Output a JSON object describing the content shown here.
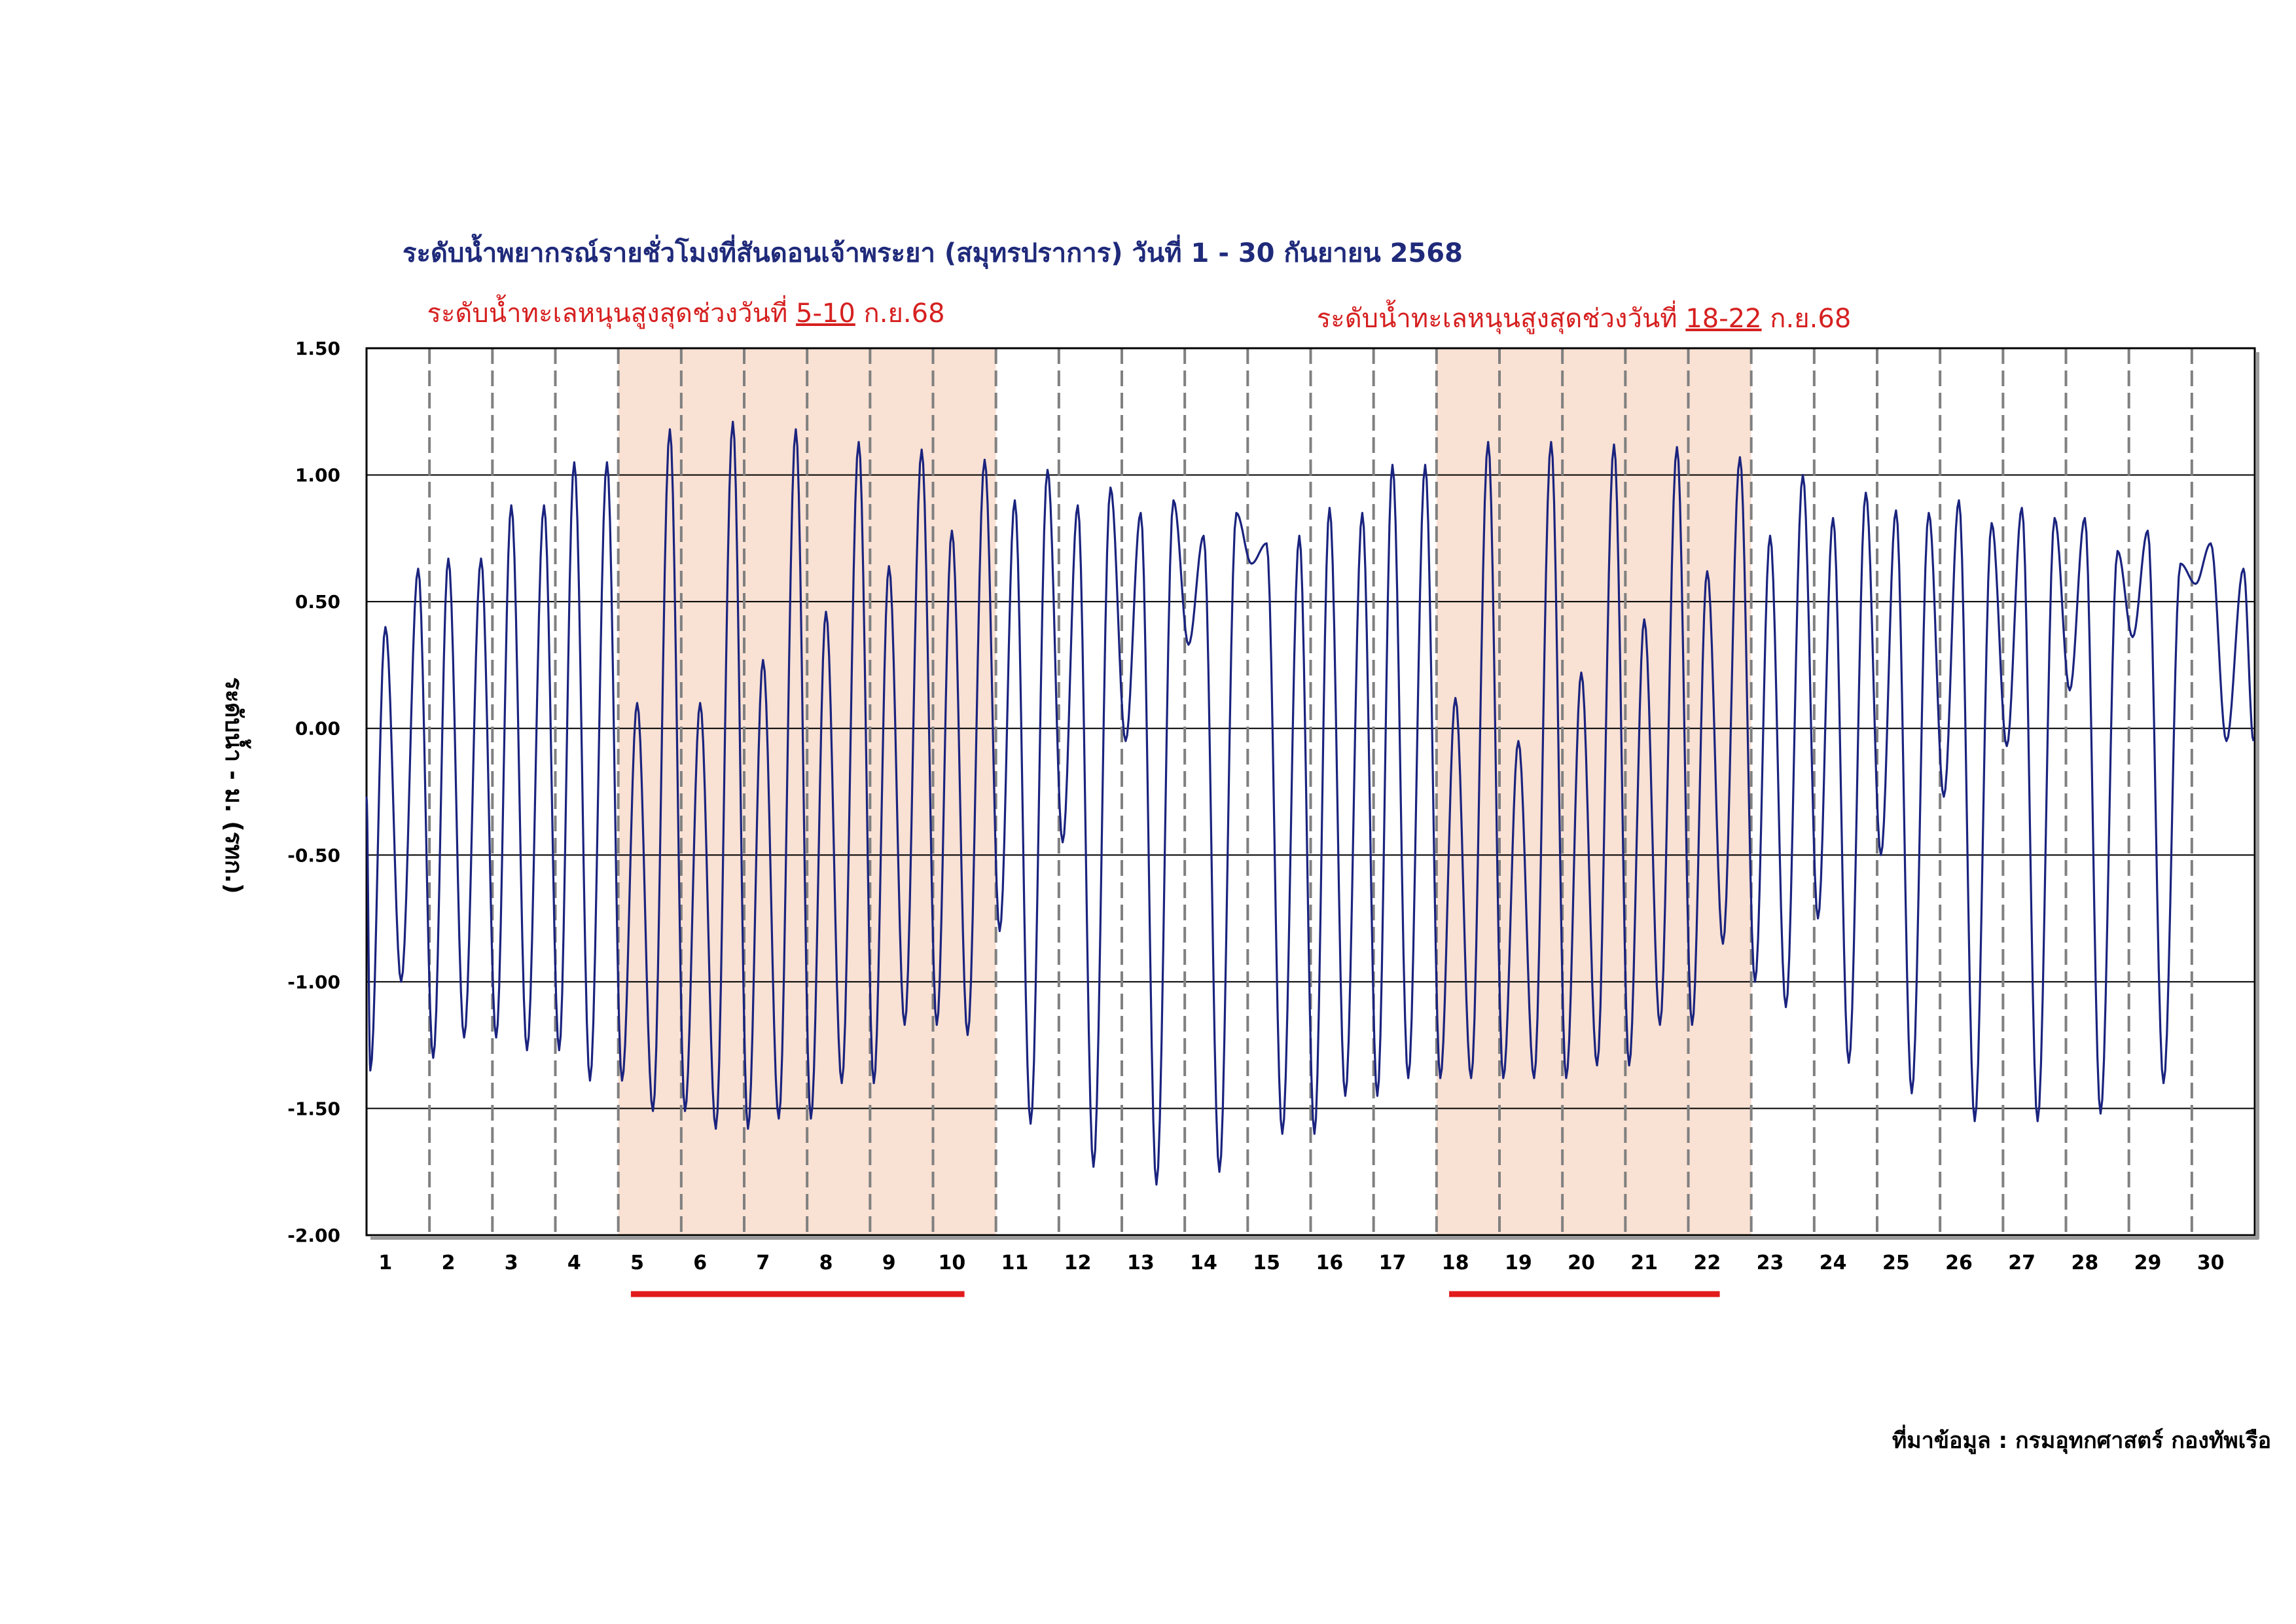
{
  "chart_data": {
    "type": "line",
    "title": "ระดับน้ำพยากรณ์รายชั่วโมงที่สันดอนเจ้าพระยา (สมุทรปราการ) วันที่ 1 - 30 กันยายน 2568",
    "ylabel": "ระดับน้ำ - ม. (รทก.)",
    "source": "ที่มาข้อมูล : กรมอุทกศาสตร์ กองทัพเรือ",
    "ylim": [
      -2.0,
      1.5
    ],
    "yticks": [
      "1.50",
      "1.00",
      "0.50",
      "0.00",
      "-0.50",
      "-1.00",
      "-1.50",
      "-2.00"
    ],
    "ytick_values": [
      1.5,
      1.0,
      0.5,
      0.0,
      -0.5,
      -1.0,
      -1.5,
      -2.0
    ],
    "x_categories": [
      "1",
      "2",
      "3",
      "4",
      "5",
      "6",
      "7",
      "8",
      "9",
      "10",
      "11",
      "12",
      "13",
      "14",
      "15",
      "16",
      "17",
      "18",
      "19",
      "20",
      "21",
      "22",
      "23",
      "24",
      "25",
      "26",
      "27",
      "28",
      "29",
      "30"
    ],
    "grid": true,
    "line_color": "#1a237e",
    "highlight_color": "#f9e1d3",
    "underline_color": "#e21b1b",
    "highlights": [
      {
        "from_day": 5,
        "to_day": 10,
        "prefix": "ระดับน้ำทะเลหนุนสูงสุดช่วงวันที่ ",
        "range": "5-10",
        "suffix": " ก.ย.68"
      },
      {
        "from_day": 18,
        "to_day": 22,
        "prefix": "ระดับน้ำทะเลหนุนสูงสุดช่วงวันที่ ",
        "range": "18-22",
        "suffix": " ก.ย.68"
      }
    ],
    "daily_extremes": [
      {
        "day": 1,
        "high1": 0.4,
        "low1": -1.35,
        "high2": 0.63,
        "low2": -1.0
      },
      {
        "day": 2,
        "high1": 0.67,
        "low1": -1.3,
        "high2": 0.67,
        "low2": -1.22
      },
      {
        "day": 3,
        "high1": 0.88,
        "low1": -1.22,
        "high2": 0.88,
        "low2": -1.27
      },
      {
        "day": 4,
        "high1": 1.05,
        "low1": -1.27,
        "high2": 1.05,
        "low2": -1.39
      },
      {
        "day": 5,
        "high1": 0.1,
        "low1": -1.39,
        "high2": 1.18,
        "low2": -1.51
      },
      {
        "day": 6,
        "high1": 0.1,
        "low1": -1.51,
        "high2": 1.21,
        "low2": -1.58
      },
      {
        "day": 7,
        "high1": 0.27,
        "low1": -1.58,
        "high2": 1.18,
        "low2": -1.54
      },
      {
        "day": 8,
        "high1": 0.46,
        "low1": -1.54,
        "high2": 1.13,
        "low2": -1.4
      },
      {
        "day": 9,
        "high1": 0.64,
        "low1": -1.4,
        "high2": 1.1,
        "low2": -1.17
      },
      {
        "day": 10,
        "high1": 0.78,
        "low1": -1.17,
        "high2": 1.06,
        "low2": -1.21
      },
      {
        "day": 11,
        "high1": 0.9,
        "low1": -0.8,
        "high2": 1.02,
        "low2": -1.56
      },
      {
        "day": 12,
        "high1": 0.88,
        "low1": -0.45,
        "high2": 0.95,
        "low2": -1.73
      },
      {
        "day": 13,
        "high1": 0.85,
        "low1": -0.05,
        "high2": 0.9,
        "low2": -1.8
      },
      {
        "day": 14,
        "high1": 0.76,
        "low1": 0.33,
        "high2": 0.85,
        "low2": -1.75
      },
      {
        "day": 15,
        "high1": 0.73,
        "low1": 0.65,
        "high2": 0.76,
        "low2": -1.6
      },
      {
        "day": 16,
        "high1": 0.87,
        "low1": -1.6,
        "high2": 0.85,
        "low2": -1.45
      },
      {
        "day": 17,
        "high1": 1.04,
        "low1": -1.45,
        "high2": 1.04,
        "low2": -1.38
      },
      {
        "day": 18,
        "high1": 0.12,
        "low1": -1.38,
        "high2": 1.13,
        "low2": -1.38
      },
      {
        "day": 19,
        "high1": -0.05,
        "low1": -1.38,
        "high2": 1.13,
        "low2": -1.38
      },
      {
        "day": 20,
        "high1": 0.22,
        "low1": -1.38,
        "high2": 1.12,
        "low2": -1.33
      },
      {
        "day": 21,
        "high1": 0.43,
        "low1": -1.33,
        "high2": 1.11,
        "low2": -1.17
      },
      {
        "day": 22,
        "high1": 0.62,
        "low1": -1.17,
        "high2": 1.07,
        "low2": -0.85
      },
      {
        "day": 23,
        "high1": 0.76,
        "low1": -1.0,
        "high2": 1.0,
        "low2": -1.1
      },
      {
        "day": 24,
        "high1": 0.83,
        "low1": -0.75,
        "high2": 0.93,
        "low2": -1.32
      },
      {
        "day": 25,
        "high1": 0.86,
        "low1": -0.5,
        "high2": 0.85,
        "low2": -1.44
      },
      {
        "day": 26,
        "high1": 0.9,
        "low1": -0.27,
        "high2": 0.81,
        "low2": -1.55
      },
      {
        "day": 27,
        "high1": 0.87,
        "low1": -0.07,
        "high2": 0.83,
        "low2": -1.55
      },
      {
        "day": 28,
        "high1": 0.83,
        "low1": 0.15,
        "high2": 0.7,
        "low2": -1.52
      },
      {
        "day": 29,
        "high1": 0.78,
        "low1": 0.36,
        "high2": 0.65,
        "low2": -1.4
      },
      {
        "day": 30,
        "high1": 0.73,
        "low1": 0.57,
        "high2": 0.63,
        "low2": -0.05
      }
    ],
    "start_value": -0.27
  }
}
